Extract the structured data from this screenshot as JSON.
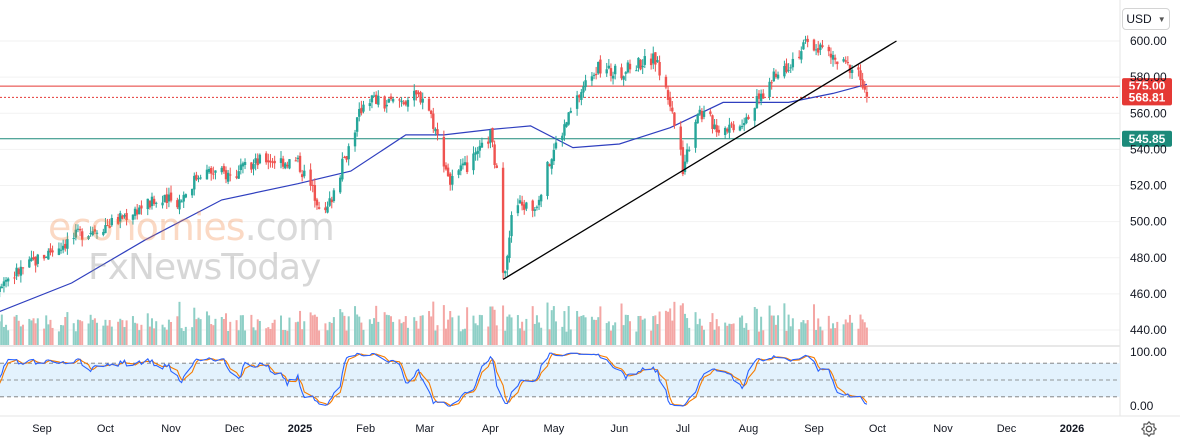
{
  "currency_button": {
    "label": "USD"
  },
  "watermark": {
    "brand_a": "economies",
    "brand_b": ".com",
    "brand_c": "FxNewsToday"
  },
  "colors": {
    "up": "#26a69a",
    "down": "#ef5350",
    "volume_up": "#8ecfc6",
    "volume_down": "#f4a6a4",
    "ma": "#2f3fbf",
    "resistance": "#e53935",
    "support": "#1b8a7a",
    "trendline": "#000000",
    "stoch_k": "#2962ff",
    "stoch_d": "#f57c00",
    "stoch_band": "#e3f2fd"
  },
  "chart_data": [
    {
      "type": "candlestick",
      "price_axis": {
        "ylim": [
          430,
          612
        ],
        "ticks": [
          "440.00",
          "460.00",
          "480.00",
          "500.00",
          "520.00",
          "540.00",
          "560.00",
          "580.00",
          "600.00"
        ]
      },
      "time_axis": [
        "Sep",
        "Oct",
        "Nov",
        "Dec",
        "2025",
        "Feb",
        "Mar",
        "Apr",
        "May",
        "Jun",
        "Jul",
        "Aug",
        "Sep",
        "Oct",
        "Nov",
        "Dec",
        "2026"
      ],
      "price_labels": [
        {
          "value": 575.0,
          "text": "575.00",
          "color": "#e53935",
          "line": "solid"
        },
        {
          "value": 568.81,
          "text": "568.81",
          "color": "#e53935",
          "line": "dotted"
        },
        {
          "value": 545.85,
          "text": "545.85",
          "color": "#1b8a7a",
          "line": "solid"
        }
      ],
      "trendline": {
        "from": {
          "date": "2025-04-07",
          "price": 468
        },
        "to": {
          "date": "2025-10-10",
          "price": 600
        }
      },
      "ohlc_anchors": [
        {
          "date": "2024-08-05",
          "close": 462
        },
        {
          "date": "2024-08-20",
          "close": 472
        },
        {
          "date": "2024-09-05",
          "close": 484
        },
        {
          "date": "2024-09-20",
          "close": 494
        },
        {
          "date": "2024-10-05",
          "close": 500
        },
        {
          "date": "2024-10-20",
          "close": 510
        },
        {
          "date": "2024-11-05",
          "close": 512
        },
        {
          "date": "2024-11-15",
          "close": 528
        },
        {
          "date": "2024-12-01",
          "close": 526
        },
        {
          "date": "2024-12-15",
          "close": 535
        },
        {
          "date": "2024-12-31",
          "close": 533
        },
        {
          "date": "2025-01-13",
          "close": 504
        },
        {
          "date": "2025-01-23",
          "close": 538
        },
        {
          "date": "2025-02-01",
          "close": 570
        },
        {
          "date": "2025-02-10",
          "close": 565
        },
        {
          "date": "2025-02-20",
          "close": 568
        },
        {
          "date": "2025-03-01",
          "close": 570
        },
        {
          "date": "2025-03-05",
          "close": 555
        },
        {
          "date": "2025-03-13",
          "close": 522
        },
        {
          "date": "2025-03-25",
          "close": 535
        },
        {
          "date": "2025-04-01",
          "close": 548
        },
        {
          "date": "2025-04-05",
          "close": 520
        },
        {
          "date": "2025-04-07",
          "close": 468
        },
        {
          "date": "2025-04-12",
          "close": 510
        },
        {
          "date": "2025-04-22",
          "close": 508
        },
        {
          "date": "2025-05-01",
          "close": 540
        },
        {
          "date": "2025-05-12",
          "close": 568
        },
        {
          "date": "2025-05-20",
          "close": 585
        },
        {
          "date": "2025-06-01",
          "close": 582
        },
        {
          "date": "2025-06-10",
          "close": 588
        },
        {
          "date": "2025-06-18",
          "close": 590
        },
        {
          "date": "2025-06-25",
          "close": 566
        },
        {
          "date": "2025-07-01",
          "close": 530
        },
        {
          "date": "2025-07-08",
          "close": 562
        },
        {
          "date": "2025-07-18",
          "close": 552
        },
        {
          "date": "2025-07-28",
          "close": 555
        },
        {
          "date": "2025-08-05",
          "close": 566
        },
        {
          "date": "2025-08-12",
          "close": 578
        },
        {
          "date": "2025-08-20",
          "close": 588
        },
        {
          "date": "2025-08-28",
          "close": 598
        },
        {
          "date": "2025-09-05",
          "close": 596
        },
        {
          "date": "2025-09-12",
          "close": 588
        },
        {
          "date": "2025-09-18",
          "close": 586
        },
        {
          "date": "2025-09-22",
          "close": 584
        },
        {
          "date": "2025-09-26",
          "close": 566
        }
      ],
      "moving_average": [
        {
          "date": "2024-08-05",
          "value": 447
        },
        {
          "date": "2024-09-15",
          "value": 466
        },
        {
          "date": "2024-10-20",
          "value": 490
        },
        {
          "date": "2024-11-25",
          "value": 512
        },
        {
          "date": "2024-12-31",
          "value": 521
        },
        {
          "date": "2025-01-25",
          "value": 528
        },
        {
          "date": "2025-02-20",
          "value": 548
        },
        {
          "date": "2025-03-10",
          "value": 548
        },
        {
          "date": "2025-04-01",
          "value": 551
        },
        {
          "date": "2025-04-20",
          "value": 553
        },
        {
          "date": "2025-05-10",
          "value": 541
        },
        {
          "date": "2025-06-01",
          "value": 543
        },
        {
          "date": "2025-06-25",
          "value": 552
        },
        {
          "date": "2025-07-20",
          "value": 566
        },
        {
          "date": "2025-08-20",
          "value": 566
        },
        {
          "date": "2025-09-10",
          "value": 571
        },
        {
          "date": "2025-09-26",
          "value": 576
        }
      ]
    },
    {
      "type": "line",
      "name": "stochastic",
      "ylim": [
        0,
        100
      ],
      "ticks": [
        "100.00",
        "0.00"
      ],
      "bands": [
        80,
        50,
        20
      ]
    }
  ]
}
